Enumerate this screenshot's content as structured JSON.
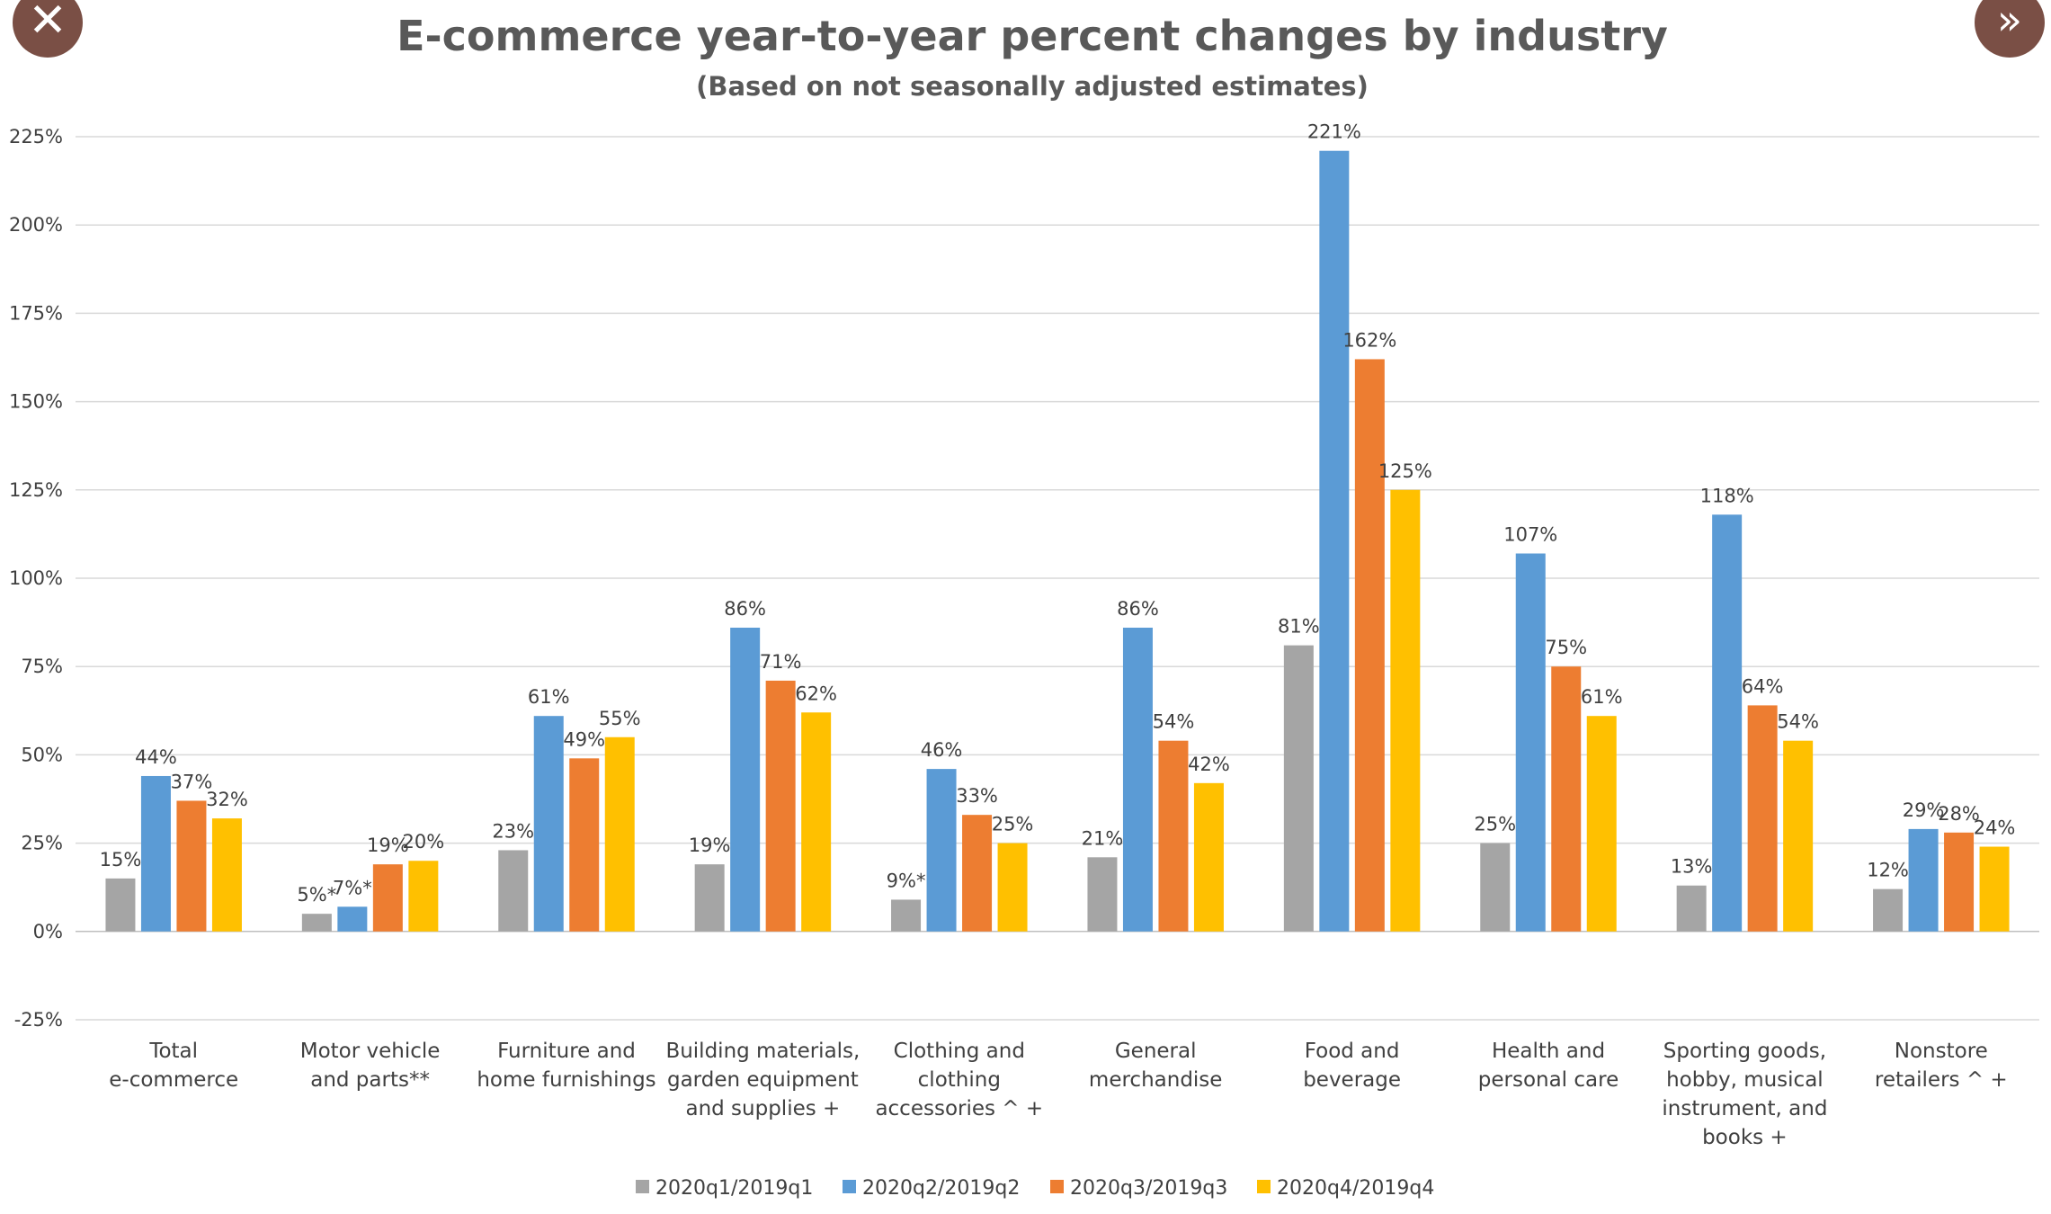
{
  "controls": {
    "close_icon": "close-icon",
    "close_glyph": "✕",
    "next_icon": "double-chevron-right-icon",
    "next_glyph": "»"
  },
  "chart_data": {
    "type": "bar",
    "title": "E-commerce year-to-year percent changes by industry",
    "subtitle": "(Based on not seasonally adjusted estimates)",
    "xlabel": "",
    "ylabel": "",
    "ylim": [
      -25,
      225
    ],
    "yticks": [
      225,
      200,
      175,
      150,
      125,
      100,
      75,
      50,
      25,
      0,
      -25
    ],
    "ytick_labels": [
      "225%",
      "200%",
      "175%",
      "150%",
      "125%",
      "100%",
      "75%",
      "50%",
      "25%",
      "0%",
      "-25%"
    ],
    "grid": true,
    "legend_position": "bottom",
    "categories": [
      [
        "Total",
        "e-commerce"
      ],
      [
        "Motor vehicle",
        "and parts**"
      ],
      [
        "Furniture and",
        "home furnishings"
      ],
      [
        "Building materials,",
        "garden equipment",
        "and supplies +"
      ],
      [
        "Clothing and",
        "clothing",
        "accessories ^ +"
      ],
      [
        "General",
        "merchandise"
      ],
      [
        "Food and",
        "beverage"
      ],
      [
        "Health and",
        "personal care"
      ],
      [
        "Sporting goods,",
        "hobby, musical",
        "instrument, and",
        "books +"
      ],
      [
        "Nonstore",
        "retailers ^ +"
      ]
    ],
    "series": [
      {
        "name": "2020q1/2019q1",
        "color": "#a5a5a5",
        "values": [
          15,
          5,
          23,
          19,
          9,
          21,
          81,
          25,
          13,
          12
        ],
        "labels": [
          "15%",
          "5%*",
          "23%",
          "19%",
          "9%*",
          "21%",
          "81%",
          "25%",
          "13%",
          "12%"
        ]
      },
      {
        "name": "2020q2/2019q2",
        "color": "#5b9bd5",
        "values": [
          44,
          7,
          61,
          86,
          46,
          86,
          221,
          107,
          118,
          29
        ],
        "labels": [
          "44%",
          "7%*",
          "61%",
          "86%",
          "46%",
          "86%",
          "221%",
          "107%",
          "118%",
          "29%"
        ]
      },
      {
        "name": "2020q3/2019q3",
        "color": "#ed7d31",
        "values": [
          37,
          19,
          49,
          71,
          33,
          54,
          162,
          75,
          64,
          28
        ],
        "labels": [
          "37%",
          "19%",
          "49%",
          "71%",
          "33%",
          "54%",
          "162%",
          "75%",
          "64%",
          "28%"
        ]
      },
      {
        "name": "2020q4/2019q4",
        "color": "#ffc000",
        "values": [
          32,
          20,
          55,
          62,
          25,
          42,
          125,
          61,
          54,
          24
        ],
        "labels": [
          "32%",
          "20%",
          "55%",
          "62%",
          "25%",
          "42%",
          "125%",
          "61%",
          "54%",
          "24%"
        ]
      }
    ]
  }
}
